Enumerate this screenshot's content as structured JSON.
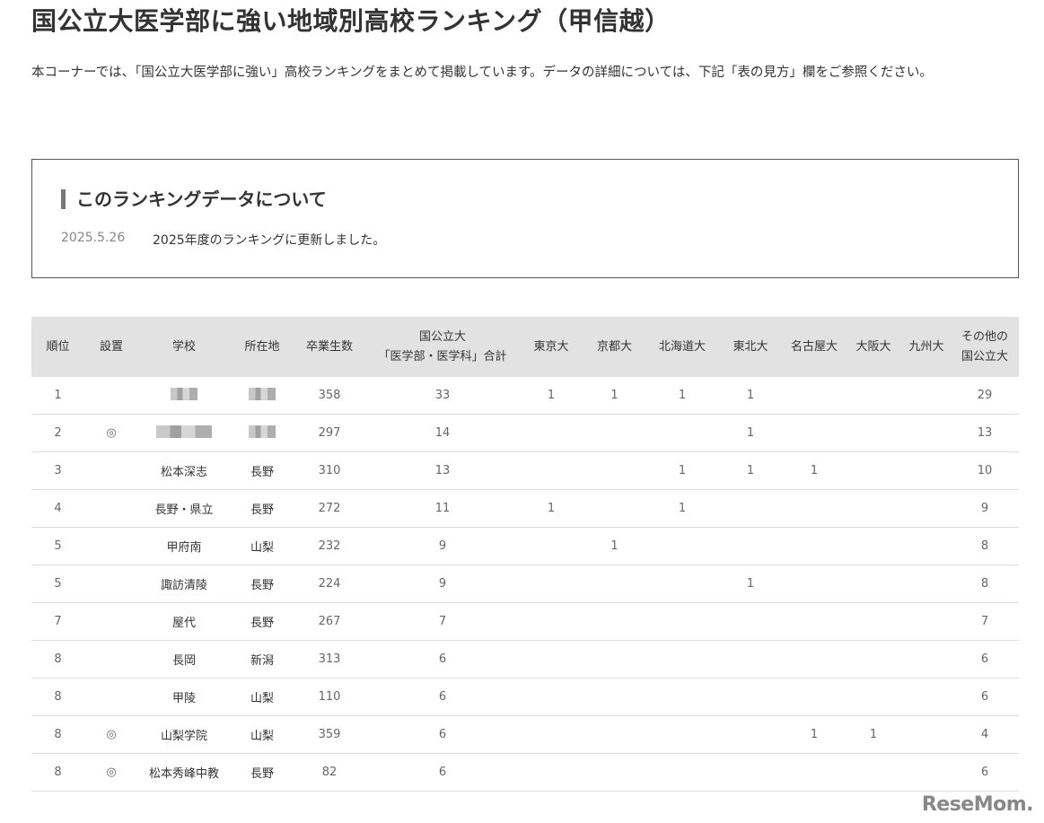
{
  "title": "国公立大医学部に強い地域別高校ランキング（甲信越）",
  "intro": "本コーナーでは、「国公立大医学部に強い」高校ランキングをまとめて掲載しています。データの詳細については、下記「表の見方」欄をご参照ください。",
  "notice": {
    "heading": "このランキングデータについて",
    "date": "2025.5.26",
    "message": "2025年度のランキングに更新しました。"
  },
  "table": {
    "headers": [
      "順位",
      "設置",
      "学校",
      "所在地",
      "卒業生数",
      "国公立大\n「医学部・医学科」合計",
      "東京大",
      "京都大",
      "北海道大",
      "東北大",
      "名古屋大",
      "大阪大",
      "九州大",
      "その他の\n国公立大"
    ],
    "rows": [
      [
        "1",
        "",
        "[blurred]",
        "[blurred]",
        "358",
        "33",
        "1",
        "1",
        "1",
        "1",
        "",
        "",
        "",
        "29"
      ],
      [
        "2",
        "◎",
        "[blurred]",
        "[blurred]",
        "297",
        "14",
        "",
        "",
        "",
        "1",
        "",
        "",
        "",
        "13"
      ],
      [
        "3",
        "",
        "松本深志",
        "長野",
        "310",
        "13",
        "",
        "",
        "1",
        "1",
        "1",
        "",
        "",
        "10"
      ],
      [
        "4",
        "",
        "長野・県立",
        "長野",
        "272",
        "11",
        "1",
        "",
        "1",
        "",
        "",
        "",
        "",
        "9"
      ],
      [
        "5",
        "",
        "甲府南",
        "山梨",
        "232",
        "9",
        "",
        "1",
        "",
        "",
        "",
        "",
        "",
        "8"
      ],
      [
        "5",
        "",
        "諏訪清陵",
        "長野",
        "224",
        "9",
        "",
        "",
        "",
        "1",
        "",
        "",
        "",
        "8"
      ],
      [
        "7",
        "",
        "屋代",
        "長野",
        "267",
        "7",
        "",
        "",
        "",
        "",
        "",
        "",
        "",
        "7"
      ],
      [
        "8",
        "",
        "長岡",
        "新潟",
        "313",
        "6",
        "",
        "",
        "",
        "",
        "",
        "",
        "",
        "6"
      ],
      [
        "8",
        "",
        "甲陵",
        "山梨",
        "110",
        "6",
        "",
        "",
        "",
        "",
        "",
        "",
        "",
        "6"
      ],
      [
        "8",
        "◎",
        "山梨学院",
        "山梨",
        "359",
        "6",
        "",
        "",
        "",
        "",
        "1",
        "1",
        "",
        "4"
      ],
      [
        "8",
        "◎",
        "松本秀峰中教",
        "長野",
        "82",
        "6",
        "",
        "",
        "",
        "",
        "",
        "",
        "",
        "6"
      ]
    ]
  },
  "logo": "ReseMom"
}
